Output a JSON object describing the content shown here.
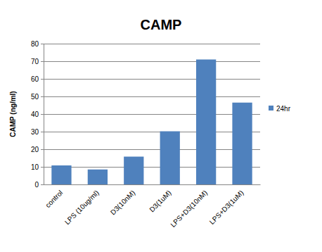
{
  "chart_data": {
    "type": "bar",
    "title": "CAMP",
    "y_label": "CAMP (ng/ml)",
    "categories": [
      "control",
      "LPS (10ug/ml)",
      "D3(10nM)",
      "D3(1uM)",
      "LPS+D3(10nM)",
      "LPS+D3(1uM)"
    ],
    "series": [
      {
        "name": "24hr",
        "color": "#4f81bd",
        "values": [
          10.8,
          8.5,
          15.8,
          30.2,
          71,
          46.5
        ]
      }
    ],
    "ylim": [
      0,
      80
    ],
    "yticks": [
      0,
      10,
      20,
      30,
      40,
      50,
      60,
      70,
      80
    ],
    "grid": true,
    "legend": "right"
  }
}
